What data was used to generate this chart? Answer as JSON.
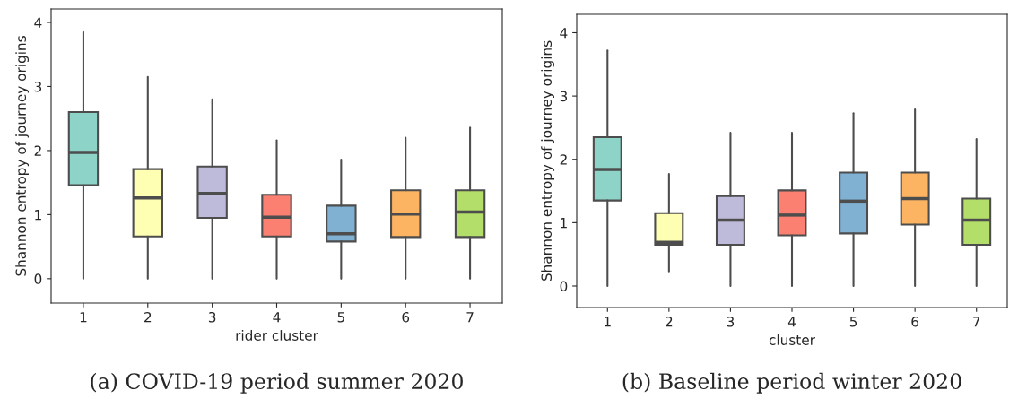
{
  "chart_data": [
    {
      "type": "box",
      "xlabel": "rider cluster",
      "ylabel": "Shannon entropy of journey origins",
      "annotations": [
        "(a) COVID-19 period summer 2020"
      ],
      "categories": [
        "1",
        "2",
        "3",
        "4",
        "5",
        "6",
        "7"
      ],
      "colors": [
        "#8dd3c7",
        "#ffffb3",
        "#bebada",
        "#fb8072",
        "#80b1d3",
        "#fdb462",
        "#b3de69"
      ],
      "boxes": [
        {
          "low": 0,
          "q1": 1.46,
          "median": 1.97,
          "q3": 2.6,
          "high": 3.85
        },
        {
          "low": 0,
          "q1": 0.66,
          "median": 1.26,
          "q3": 1.71,
          "high": 3.15
        },
        {
          "low": 0,
          "q1": 0.95,
          "median": 1.33,
          "q3": 1.75,
          "high": 2.8
        },
        {
          "low": 0,
          "q1": 0.66,
          "median": 0.96,
          "q3": 1.31,
          "high": 2.16
        },
        {
          "low": 0,
          "q1": 0.58,
          "median": 0.7,
          "q3": 1.14,
          "high": 1.86
        },
        {
          "low": 0,
          "q1": 0.65,
          "median": 1.01,
          "q3": 1.38,
          "high": 2.2
        },
        {
          "low": 0,
          "q1": 0.65,
          "median": 1.04,
          "q3": 1.38,
          "high": 2.36
        }
      ],
      "ylim": [
        -0.38,
        4.21
      ],
      "yticks": [
        0,
        1,
        2,
        3,
        4
      ],
      "grid": false
    },
    {
      "type": "box",
      "xlabel": "cluster",
      "ylabel": "Shannon entropy of journey origins",
      "annotations": [
        "(b) Baseline period winter 2020"
      ],
      "categories": [
        "1",
        "2",
        "3",
        "4",
        "5",
        "6",
        "7"
      ],
      "colors": [
        "#8dd3c7",
        "#ffffb3",
        "#bebada",
        "#fb8072",
        "#80b1d3",
        "#fdb462",
        "#b3de69"
      ],
      "boxes": [
        {
          "low": 0,
          "q1": 1.35,
          "median": 1.84,
          "q3": 2.35,
          "high": 3.72
        },
        {
          "low": 0.23,
          "q1": 0.65,
          "median": 0.69,
          "q3": 1.15,
          "high": 1.77
        },
        {
          "low": 0,
          "q1": 0.65,
          "median": 1.04,
          "q3": 1.42,
          "high": 2.42
        },
        {
          "low": 0,
          "q1": 0.8,
          "median": 1.12,
          "q3": 1.51,
          "high": 2.42
        },
        {
          "low": 0,
          "q1": 0.83,
          "median": 1.34,
          "q3": 1.79,
          "high": 2.73
        },
        {
          "low": 0,
          "q1": 0.97,
          "median": 1.38,
          "q3": 1.79,
          "high": 2.79
        },
        {
          "low": 0,
          "q1": 0.65,
          "median": 1.04,
          "q3": 1.38,
          "high": 2.32
        }
      ],
      "ylim": [
        -0.34,
        4.29
      ],
      "yticks": [
        0,
        1,
        2,
        3,
        4
      ],
      "grid": false
    }
  ]
}
